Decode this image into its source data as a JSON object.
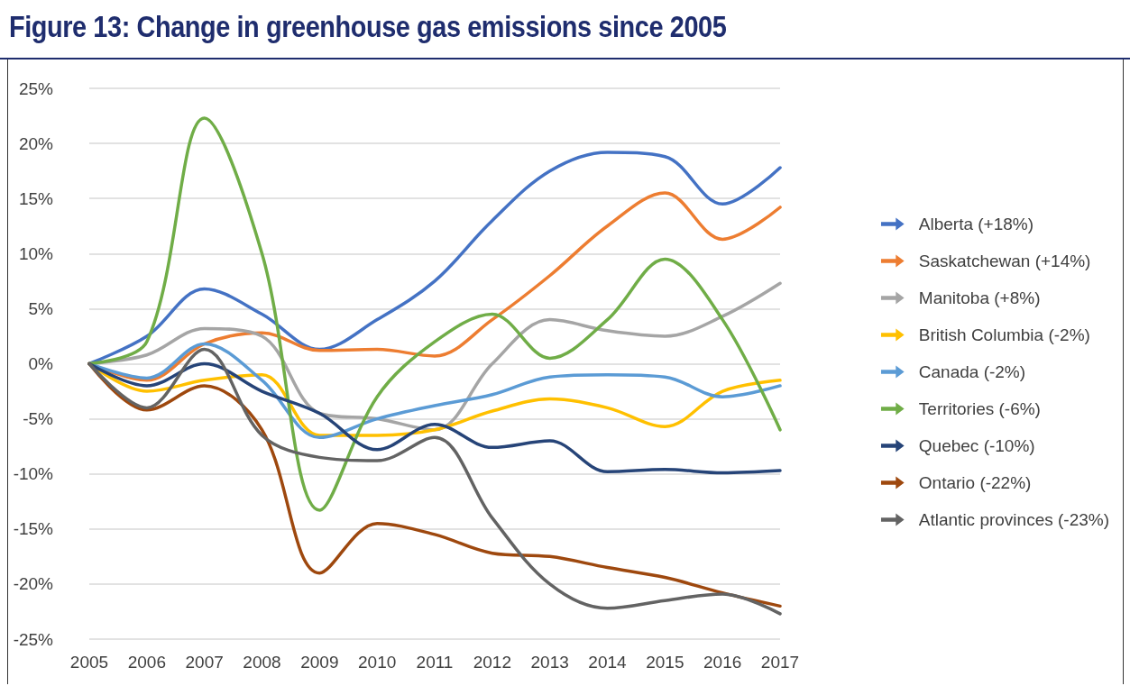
{
  "chart_data": {
    "type": "line",
    "title": "Figure 13: Change in greenhouse gas emissions since 2005",
    "categories": [
      "2005",
      "2006",
      "2007",
      "2008",
      "2009",
      "2010",
      "2011",
      "2012",
      "2013",
      "2014",
      "2015",
      "2016",
      "2017"
    ],
    "series": [
      {
        "name": "Alberta (+18%)",
        "color": "#4472c4",
        "values": [
          0,
          2.5,
          6.8,
          4.5,
          1.3,
          4.0,
          7.5,
          13,
          17.5,
          19.2,
          18.8,
          14.5,
          17.8
        ]
      },
      {
        "name": "Saskatchewan (+14%)",
        "color": "#ed7d31",
        "values": [
          0,
          -1.5,
          1.8,
          2.8,
          1.2,
          1.3,
          0.7,
          4,
          8,
          12.5,
          15.5,
          11.3,
          14.2
        ]
      },
      {
        "name": "Manitoba (+8%)",
        "color": "#a5a5a5",
        "values": [
          0,
          0.8,
          3.2,
          2.5,
          -4.5,
          -5,
          -6,
          0,
          4,
          3,
          2.5,
          4.3,
          7.3
        ]
      },
      {
        "name": "British Columbia (-2%)",
        "color": "#ffc000",
        "values": [
          0,
          -2.5,
          -1.5,
          -1,
          -6.5,
          -6.5,
          -6,
          -4.3,
          -3.2,
          -4,
          -5.7,
          -2.5,
          -1.5
        ]
      },
      {
        "name": "Canada (-2%)",
        "color": "#5b9bd5",
        "values": [
          0,
          -1.3,
          1.8,
          -1.5,
          -6.7,
          -5,
          -3.8,
          -2.8,
          -1.2,
          -1,
          -1.2,
          -3,
          -2
        ]
      },
      {
        "name": "Territories (-6%)",
        "color": "#70ad47",
        "values": [
          0,
          2,
          22.3,
          10,
          -13.3,
          -3,
          2,
          4.5,
          0.5,
          4,
          9.5,
          4,
          -6
        ]
      },
      {
        "name": "Quebec (-10%)",
        "color": "#264478",
        "values": [
          0,
          -2,
          0,
          -2.5,
          -4.5,
          -7.8,
          -5.5,
          -7.6,
          -7,
          -9.8,
          -9.6,
          -9.9,
          -9.7
        ]
      },
      {
        "name": "Ontario (-22%)",
        "color": "#9e480e",
        "values": [
          0,
          -4.2,
          -2,
          -6,
          -19,
          -14.5,
          -15.5,
          -17.2,
          -17.5,
          -18.5,
          -19.4,
          -20.8,
          -22
        ]
      },
      {
        "name": "Atlantic provinces (-23%)",
        "color": "#636363",
        "values": [
          0,
          -4,
          1.3,
          -6.5,
          -8.5,
          -8.8,
          -6.7,
          -14,
          -20,
          -22.2,
          -21.5,
          -20.9,
          -22.7
        ]
      }
    ],
    "ylim": [
      -25,
      25
    ],
    "yticks": [
      {
        "value": -25,
        "label": "-25%"
      },
      {
        "value": -20,
        "label": "-20%"
      },
      {
        "value": -15,
        "label": "-15%"
      },
      {
        "value": -10,
        "label": "-10%"
      },
      {
        "value": -5,
        "label": "-5%"
      },
      {
        "value": 0,
        "label": "0%"
      },
      {
        "value": 5,
        "label": "5%"
      },
      {
        "value": 10,
        "label": "10%"
      },
      {
        "value": 15,
        "label": "15%"
      },
      {
        "value": 20,
        "label": "20%"
      },
      {
        "value": 25,
        "label": "25%"
      }
    ],
    "grid": "y",
    "legend": "right",
    "marker": "none"
  }
}
